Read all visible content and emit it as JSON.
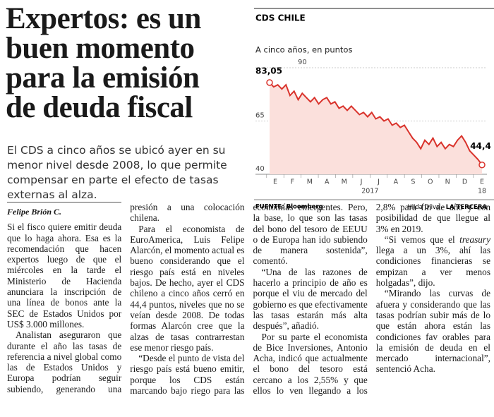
{
  "headline": [
    "Expertos: es un",
    "buen momento",
    "para la emisión",
    "de deuda fiscal"
  ],
  "lede": "El CDS a cinco años se ubicó ayer en su menor nivel desde 2008, lo que permite compensar en parte el efecto de tasas externas al alza.",
  "byline": "Felipe Brión C.",
  "paragraphs": [
    [
      "Si el fisco quiere emitir deuda que lo haga ahora. Esa es la recomendación que hacen expertos luego de que el miércoles en la tarde el Ministerio de Hacienda anunciara la inscripción de una línea de bonos ante la SEC de Estados Unidos por US$ 3.000 millones."
    ],
    [
      "Analistan aseguraron que durante el año las tasas de referencia a nivel global como las de Estados Unidos y Europa podrían seguir subiendo, generando una presión a una colocación chilena."
    ],
    [
      "Para el economista de EuroAmerica, Luis Felipe Alarcón, el momento actual es bueno considerando que el riesgo país está en niveles bajos. De hecho, ayer el CDS chileno a cinco años cerró en 44,4 puntos, niveles que no se veían desde 2008. De todas formas Alarcón cree que la alzas de tasas contrarrestan ese menor riesgo país."
    ],
    [
      "“Desde el punto de vista del riesgo país está bueno emitir, porque los CDS están marcando bajo riego para las economías emergentes. Pero, la base, lo que son las tasas del bono del tesoro de EEUU o de Europa han ido subiendo de manera sostenida”, comentó."
    ],
    [
      "“Una de las razones de hacerlo a principio de año es porque el viu de mercado del gobierno es que efectivamente las tasas estarán más alta después”, añadió."
    ],
    [
      "Por su parte el economista de Bice Inversiones, Antonio Acha, indicó que actualmente el bono del tesoro está cercano a los 2,55% y que ellos lo ven llegando a los 2,8% para fin de año y con posibilidad de que llegue al 3% en 2019."
    ],
    [
      "“Si vemos que el ",
      "treasury",
      " llega a un 3%, ahí las condiciones financieras se empizan a ver menos holgadas”, dijo."
    ],
    [
      "“Mirando las curvas de afuera y considerando que las tasas podrían subir más de lo que están ahora están las condiciones fav orables para la emisión de deuda en el mercado internacional”, sentenció Acha."
    ]
  ],
  "chart_data": {
    "type": "line",
    "title": "CDS CHILE",
    "subtitle": "A cinco años, en puntos",
    "x_labels": [
      "E",
      "F",
      "M",
      "A",
      "M",
      "J",
      "J",
      "A",
      "S",
      "O",
      "N",
      "D",
      "E"
    ],
    "year_labels": [
      "2017",
      "18"
    ],
    "ylim": [
      40,
      90
    ],
    "yticks": [
      40,
      65,
      90
    ],
    "grid": true,
    "series": [
      {
        "color": "#d9322b",
        "values": [
          83.05,
          81,
          82,
          80,
          82,
          77,
          79,
          75,
          78,
          76,
          74,
          76,
          73,
          75,
          76,
          73,
          74,
          71,
          72,
          70,
          72,
          70,
          68,
          69,
          67,
          69,
          66,
          67,
          65,
          66,
          63,
          64,
          62,
          63,
          60,
          57,
          55,
          52,
          56,
          54,
          57,
          53,
          55,
          52,
          54,
          53,
          56,
          58,
          55,
          51,
          49,
          47,
          44.4
        ],
        "value_labels": [
          "83,05",
          null,
          null,
          null,
          null,
          null,
          null,
          null,
          null,
          null,
          null,
          null,
          null,
          null,
          null,
          null,
          null,
          null,
          null,
          null,
          null,
          null,
          null,
          null,
          null,
          null,
          null,
          null,
          null,
          null,
          null,
          null,
          null,
          null,
          null,
          null,
          null,
          null,
          null,
          null,
          null,
          null,
          null,
          null,
          null,
          null,
          null,
          null,
          null,
          null,
          null,
          null,
          "44,4"
        ]
      }
    ],
    "source": "FUENTE: Bloomberg",
    "credit": [
      "Hilda Oliva - ",
      "LA TERCERA"
    ]
  }
}
